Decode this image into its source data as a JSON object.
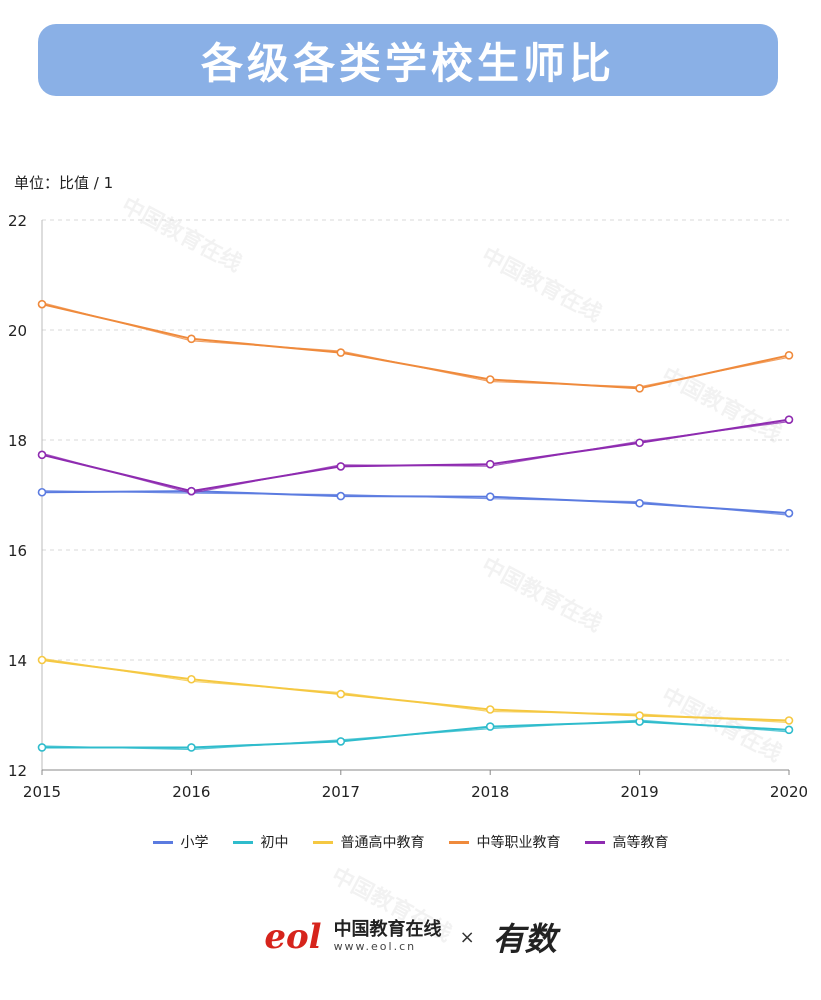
{
  "title": "各级各类学校生师比",
  "unit_label": "单位：比值 / 1",
  "footer": {
    "brand_mark": "eol",
    "brand_name": "中国教育在线",
    "brand_url": "www.eol.cn",
    "times": "×",
    "partner": "有数"
  },
  "watermark": "中国教育在线",
  "chart_data": {
    "type": "line",
    "title": "各级各类学校生师比",
    "ylabel": "单位：比值 / 1",
    "xlabel": "",
    "categories": [
      "2015",
      "2016",
      "2017",
      "2018",
      "2019",
      "2020"
    ],
    "ylim": [
      12,
      22
    ],
    "yticks": [
      12,
      14,
      16,
      18,
      20,
      22
    ],
    "grid": true,
    "legend_position": "bottom",
    "series": [
      {
        "name": "小学",
        "color": "#5b7be0",
        "values": [
          17.05,
          17.07,
          16.98,
          16.97,
          16.85,
          16.67
        ]
      },
      {
        "name": "初中",
        "color": "#2fbccc",
        "values": [
          12.41,
          12.41,
          12.52,
          12.79,
          12.88,
          12.73
        ]
      },
      {
        "name": "普通高中教育",
        "color": "#f5c842",
        "values": [
          14.0,
          13.65,
          13.38,
          13.1,
          12.99,
          12.9
        ]
      },
      {
        "name": "中等职业教育",
        "color": "#ef8a3c",
        "values": [
          20.47,
          19.84,
          19.59,
          19.1,
          18.94,
          19.54
        ]
      },
      {
        "name": "高等教育",
        "color": "#8e2bb0",
        "values": [
          17.73,
          17.07,
          17.52,
          17.56,
          17.95,
          18.37
        ]
      }
    ]
  }
}
